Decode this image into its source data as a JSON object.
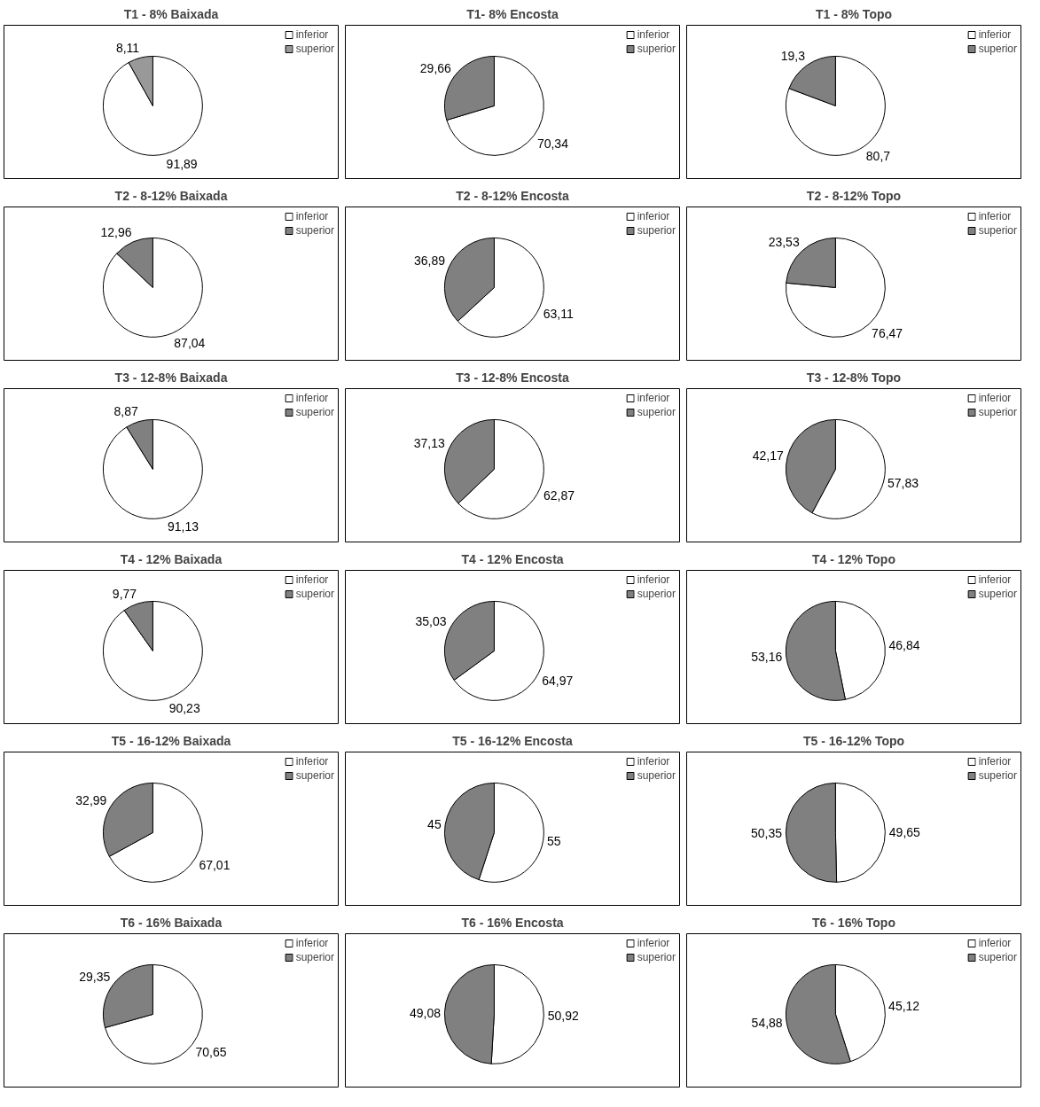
{
  "chart_data": [
    {
      "type": "pie",
      "title": "T1 - 8% Baixada",
      "categories": [
        "inferior",
        "superior"
      ],
      "values": [
        91.89,
        8.11
      ],
      "value_labels": [
        "91,89",
        "8,11"
      ],
      "colors": [
        "#ffffff",
        "#999999"
      ],
      "legend": "top right"
    },
    {
      "type": "pie",
      "title": "T1- 8% Encosta",
      "categories": [
        "inferior",
        "superior"
      ],
      "values": [
        70.34,
        29.66
      ],
      "value_labels": [
        "70,34",
        "29,66"
      ],
      "colors": [
        "#ffffff",
        "#808080"
      ],
      "legend": "top right"
    },
    {
      "type": "pie",
      "title": "T1 - 8% Topo",
      "categories": [
        "inferior",
        "superior"
      ],
      "values": [
        80.7,
        19.3
      ],
      "value_labels": [
        "80,7",
        "19,3"
      ],
      "colors": [
        "#ffffff",
        "#808080"
      ],
      "legend": "top right"
    },
    {
      "type": "pie",
      "title": "T2 - 8-12% Baixada",
      "categories": [
        "inferior",
        "superior"
      ],
      "values": [
        87.04,
        12.96
      ],
      "value_labels": [
        "87,04",
        "12,96"
      ],
      "colors": [
        "#ffffff",
        "#808080"
      ],
      "legend": "top right"
    },
    {
      "type": "pie",
      "title": "T2 - 8-12% Encosta",
      "categories": [
        "inferior",
        "superior"
      ],
      "values": [
        63.11,
        36.89
      ],
      "value_labels": [
        "63,11",
        "36,89"
      ],
      "colors": [
        "#ffffff",
        "#808080"
      ],
      "legend": "top right"
    },
    {
      "type": "pie",
      "title": "T2 - 8-12% Topo",
      "categories": [
        "inferior",
        "superior"
      ],
      "values": [
        76.47,
        23.53
      ],
      "value_labels": [
        "76,47",
        "23,53"
      ],
      "colors": [
        "#ffffff",
        "#808080"
      ],
      "legend": "top right"
    },
    {
      "type": "pie",
      "title": "T3 - 12-8% Baixada",
      "categories": [
        "inferior",
        "superior"
      ],
      "values": [
        91.13,
        8.87
      ],
      "value_labels": [
        "91,13",
        "8,87"
      ],
      "colors": [
        "#ffffff",
        "#808080"
      ],
      "legend": "top right"
    },
    {
      "type": "pie",
      "title": "T3 - 12-8% Encosta",
      "categories": [
        "inferior",
        "superior"
      ],
      "values": [
        62.87,
        37.13
      ],
      "value_labels": [
        "62,87",
        "37,13"
      ],
      "colors": [
        "#ffffff",
        "#808080"
      ],
      "legend": "top right"
    },
    {
      "type": "pie",
      "title": "T3 - 12-8% Topo",
      "categories": [
        "inferior",
        "superior"
      ],
      "values": [
        57.83,
        42.17
      ],
      "value_labels": [
        "57,83",
        "42,17"
      ],
      "colors": [
        "#ffffff",
        "#808080"
      ],
      "legend": "top right"
    },
    {
      "type": "pie",
      "title": "T4 - 12% Baixada",
      "categories": [
        "inferior",
        "superior"
      ],
      "values": [
        90.23,
        9.77
      ],
      "value_labels": [
        "90,23",
        "9,77"
      ],
      "colors": [
        "#ffffff",
        "#808080"
      ],
      "legend": "top right"
    },
    {
      "type": "pie",
      "title": "T4 - 12% Encosta",
      "categories": [
        "inferior",
        "superior"
      ],
      "values": [
        64.97,
        35.03
      ],
      "value_labels": [
        "64,97",
        "35,03"
      ],
      "colors": [
        "#ffffff",
        "#808080"
      ],
      "legend": "top right"
    },
    {
      "type": "pie",
      "title": "T4 - 12% Topo",
      "categories": [
        "inferior",
        "superior"
      ],
      "values": [
        46.84,
        53.16
      ],
      "value_labels": [
        "46,84",
        "53,16"
      ],
      "colors": [
        "#ffffff",
        "#808080"
      ],
      "legend": "top right"
    },
    {
      "type": "pie",
      "title": "T5 - 16-12% Baixada",
      "categories": [
        "inferior",
        "superior"
      ],
      "values": [
        67.01,
        32.99
      ],
      "value_labels": [
        "67,01",
        "32,99"
      ],
      "colors": [
        "#ffffff",
        "#808080"
      ],
      "legend": "top right"
    },
    {
      "type": "pie",
      "title": "T5 - 16-12% Encosta",
      "categories": [
        "inferior",
        "superior"
      ],
      "values": [
        55,
        45
      ],
      "value_labels": [
        "55",
        "45"
      ],
      "colors": [
        "#ffffff",
        "#808080"
      ],
      "legend": "top right"
    },
    {
      "type": "pie",
      "title": "T5 - 16-12% Topo",
      "categories": [
        "inferior",
        "superior"
      ],
      "values": [
        49.65,
        50.35
      ],
      "value_labels": [
        "49,65",
        "50,35"
      ],
      "colors": [
        "#ffffff",
        "#808080"
      ],
      "legend": "top right"
    },
    {
      "type": "pie",
      "title": "T6 - 16% Baixada",
      "categories": [
        "inferior",
        "superior"
      ],
      "values": [
        70.65,
        29.35
      ],
      "value_labels": [
        "70,65",
        "29,35"
      ],
      "colors": [
        "#ffffff",
        "#808080"
      ],
      "legend": "top right"
    },
    {
      "type": "pie",
      "title": "T6 - 16% Encosta",
      "categories": [
        "inferior",
        "superior"
      ],
      "values": [
        50.92,
        49.08
      ],
      "value_labels": [
        "50,92",
        "49,08"
      ],
      "colors": [
        "#ffffff",
        "#808080"
      ],
      "legend": "top right"
    },
    {
      "type": "pie",
      "title": "T6 - 16% Topo",
      "categories": [
        "inferior",
        "superior"
      ],
      "values": [
        45.12,
        54.88
      ],
      "value_labels": [
        "45,12",
        "54,88"
      ],
      "colors": [
        "#ffffff",
        "#808080"
      ],
      "legend": "top right"
    }
  ]
}
